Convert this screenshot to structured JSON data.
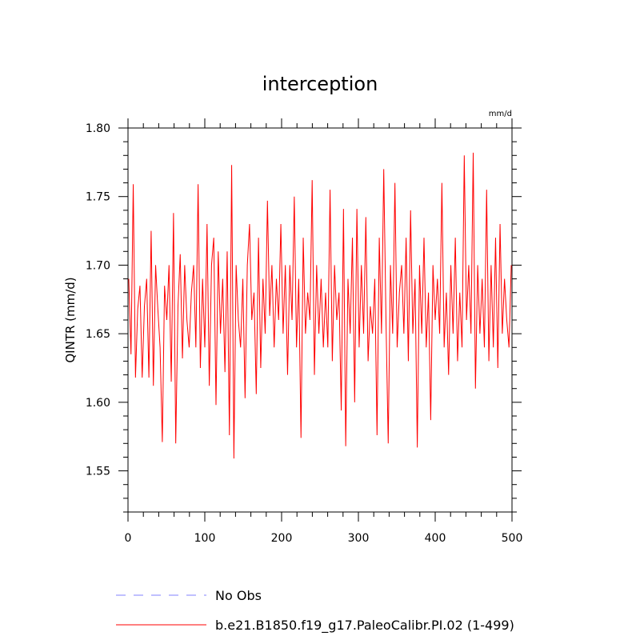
{
  "chart_data": {
    "type": "line",
    "title": "interception",
    "units_label": "mm/d",
    "ylabel": "QINTR  (mm/d)",
    "xlabel": "",
    "xlim": [
      0,
      500
    ],
    "ylim": [
      1.52,
      1.8
    ],
    "x_ticks": [
      "0",
      "100",
      "200",
      "300",
      "400",
      "500"
    ],
    "y_ticks": [
      "1.55",
      "1.60",
      "1.65",
      "1.70",
      "1.75",
      "1.80"
    ],
    "grid": false,
    "legend_position": "bottom",
    "series": [
      {
        "name": "No Obs",
        "color": "#8080ff",
        "dash": "dashed",
        "values": []
      },
      {
        "name": "b.e21.B1850.f19_g17.PaleoCalibr.PI.02 (1-499)",
        "color": "#ff0000",
        "dash": "solid",
        "x_start": 1,
        "x_end": 499,
        "values": [
          1.69,
          1.635,
          1.759,
          1.618,
          1.668,
          1.685,
          1.618,
          1.67,
          1.69,
          1.618,
          1.725,
          1.612,
          1.7,
          1.668,
          1.64,
          1.571,
          1.685,
          1.66,
          1.7,
          1.615,
          1.738,
          1.57,
          1.67,
          1.708,
          1.632,
          1.7,
          1.66,
          1.64,
          1.68,
          1.7,
          1.64,
          1.759,
          1.625,
          1.69,
          1.64,
          1.73,
          1.612,
          1.7,
          1.72,
          1.598,
          1.71,
          1.65,
          1.69,
          1.622,
          1.71,
          1.576,
          1.773,
          1.559,
          1.7,
          1.66,
          1.64,
          1.69,
          1.603,
          1.7,
          1.73,
          1.66,
          1.68,
          1.606,
          1.72,
          1.625,
          1.69,
          1.65,
          1.747,
          1.663,
          1.7,
          1.64,
          1.69,
          1.66,
          1.73,
          1.65,
          1.7,
          1.62,
          1.7,
          1.66,
          1.75,
          1.64,
          1.69,
          1.574,
          1.72,
          1.65,
          1.68,
          1.66,
          1.762,
          1.62,
          1.7,
          1.65,
          1.69,
          1.64,
          1.68,
          1.64,
          1.755,
          1.63,
          1.7,
          1.66,
          1.68,
          1.594,
          1.741,
          1.568,
          1.69,
          1.65,
          1.72,
          1.6,
          1.741,
          1.64,
          1.7,
          1.65,
          1.735,
          1.63,
          1.67,
          1.65,
          1.69,
          1.576,
          1.72,
          1.65,
          1.77,
          1.66,
          1.57,
          1.7,
          1.65,
          1.76,
          1.64,
          1.68,
          1.7,
          1.65,
          1.72,
          1.63,
          1.74,
          1.65,
          1.69,
          1.567,
          1.7,
          1.65,
          1.72,
          1.64,
          1.68,
          1.587,
          1.7,
          1.66,
          1.69,
          1.65,
          1.76,
          1.64,
          1.68,
          1.62,
          1.7,
          1.65,
          1.72,
          1.63,
          1.68,
          1.64,
          1.78,
          1.66,
          1.7,
          1.65,
          1.782,
          1.61,
          1.7,
          1.65,
          1.69,
          1.64,
          1.755,
          1.63,
          1.7,
          1.64,
          1.72,
          1.625,
          1.73,
          1.65,
          1.69,
          1.66,
          1.64,
          1.7
        ]
      }
    ]
  }
}
